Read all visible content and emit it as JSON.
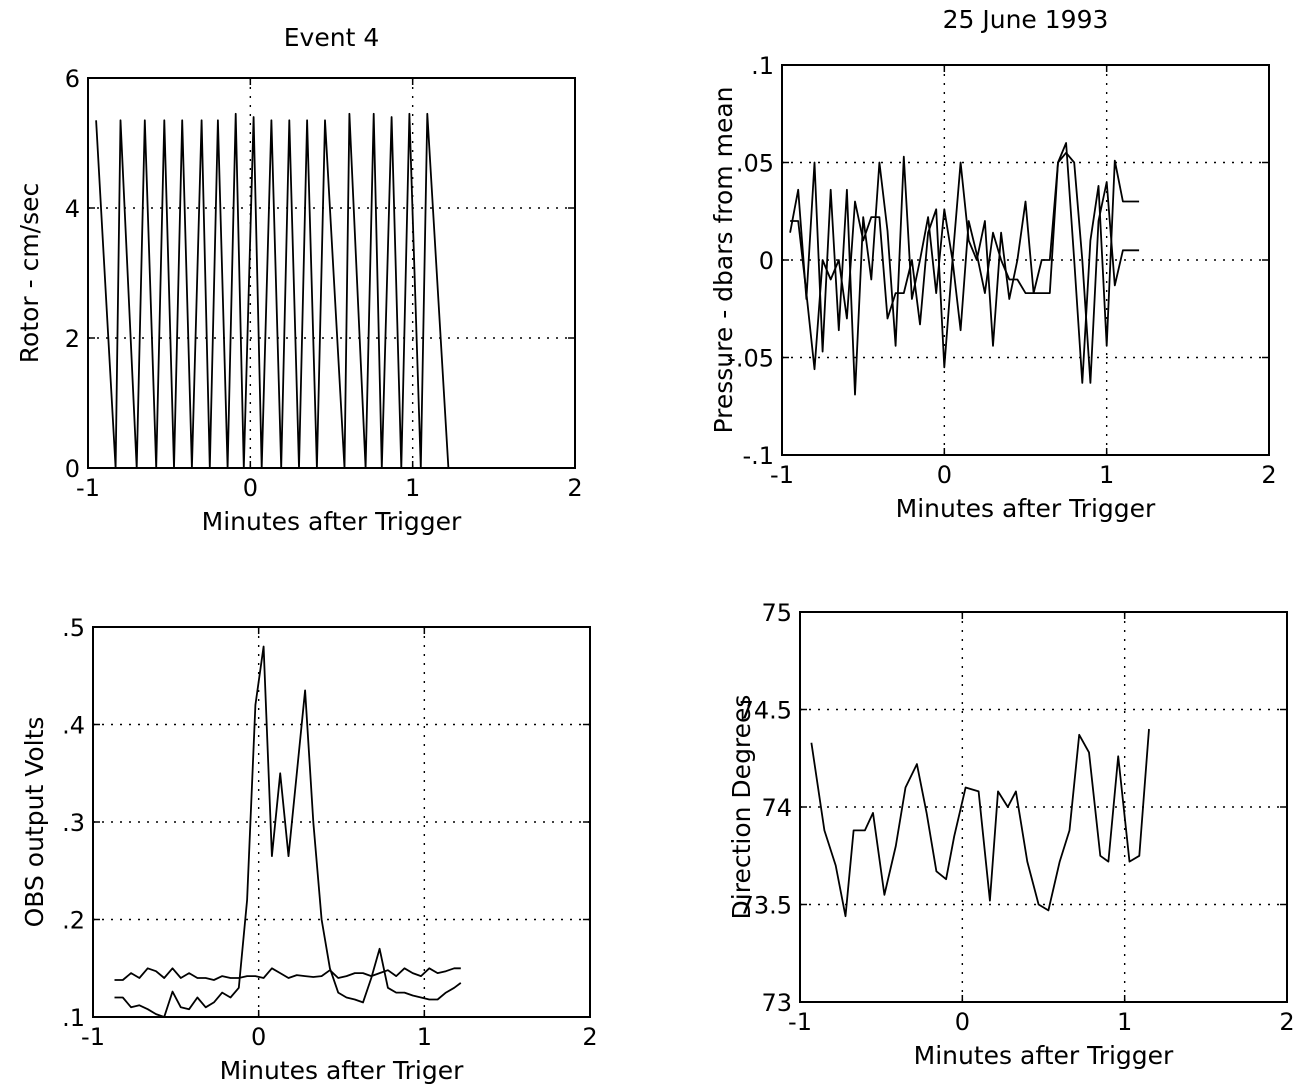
{
  "chart_data": [
    {
      "type": "line",
      "title": "Event 4",
      "xlabel": "Minutes after Trigger",
      "ylabel": "Rotor - cm/sec",
      "xlim": [
        -1,
        2
      ],
      "ylim": [
        0,
        6
      ],
      "xticks": [
        -1,
        0,
        1,
        2
      ],
      "yticks": [
        0,
        2,
        4,
        6
      ],
      "grid": true,
      "series": [
        {
          "x": [
            -0.95,
            -0.83,
            -0.8,
            -0.7,
            -0.65,
            -0.58,
            -0.53,
            -0.47,
            -0.42,
            -0.36,
            -0.3,
            -0.25,
            -0.2,
            -0.14,
            -0.09,
            -0.04,
            0.02,
            0.07,
            0.13,
            0.19,
            0.24,
            0.3,
            0.35,
            0.41,
            0.46,
            0.58,
            0.61,
            0.71,
            0.76,
            0.81,
            0.87,
            0.93,
            0.98,
            1.05,
            1.09,
            1.22
          ],
          "y": [
            5.35,
            0,
            5.35,
            0,
            5.35,
            0,
            5.35,
            0,
            5.35,
            0,
            5.35,
            0,
            5.35,
            0,
            5.45,
            0,
            5.4,
            0,
            5.35,
            0,
            5.35,
            0,
            5.35,
            0,
            5.35,
            0,
            5.45,
            0,
            5.45,
            0,
            5.4,
            0,
            5.45,
            0,
            5.45,
            0
          ]
        }
      ]
    },
    {
      "type": "line",
      "title": "25 June 1993",
      "xlabel": "Minutes after Trigger",
      "ylabel": "Pressure - dbars from mean",
      "xlim": [
        -1,
        2
      ],
      "ylim": [
        -0.1,
        0.1
      ],
      "xticks": [
        -1,
        0,
        1,
        2
      ],
      "yticks": [
        -0.1,
        -0.05,
        0,
        0.05,
        0.1
      ],
      "grid": true,
      "series": [
        {
          "x": [
            -0.95,
            -0.9,
            -0.85,
            -0.8,
            -0.75,
            -0.7,
            -0.65,
            -0.6,
            -0.55,
            -0.5,
            -0.45,
            -0.4,
            -0.35,
            -0.3,
            -0.25,
            -0.2,
            -0.15,
            -0.1,
            -0.05,
            0.0,
            0.05,
            0.1,
            0.15,
            0.2,
            0.25,
            0.3,
            0.35,
            0.4,
            0.45,
            0.5,
            0.55,
            0.6,
            0.65,
            0.7,
            0.75,
            0.8,
            0.85,
            0.9,
            0.95,
            1.0,
            1.05,
            1.1,
            1.15,
            1.2
          ],
          "y": [
            0.014,
            0.036,
            -0.02,
            0.05,
            -0.047,
            0.036,
            -0.036,
            0.036,
            -0.069,
            0.022,
            -0.01,
            0.05,
            0.015,
            -0.044,
            0.053,
            -0.02,
            0.0,
            0.022,
            -0.017,
            0.026,
            0.0,
            0.05,
            0.01,
            0.0,
            0.02,
            -0.044,
            0.014,
            -0.02,
            0.0,
            0.03,
            -0.017,
            0.0,
            0.0,
            0.05,
            0.06,
            0.0,
            -0.063,
            0.01,
            0.038,
            -0.044,
            0.051,
            0.03,
            0.03,
            0.03
          ]
        },
        {
          "x": [
            -0.95,
            -0.9,
            -0.85,
            -0.8,
            -0.75,
            -0.7,
            -0.65,
            -0.6,
            -0.55,
            -0.5,
            -0.45,
            -0.4,
            -0.35,
            -0.3,
            -0.25,
            -0.2,
            -0.15,
            -0.1,
            -0.05,
            0.0,
            0.05,
            0.1,
            0.15,
            0.2,
            0.25,
            0.3,
            0.35,
            0.4,
            0.45,
            0.5,
            0.55,
            0.6,
            0.65,
            0.7,
            0.75,
            0.8,
            0.85,
            0.9,
            0.95,
            1.0,
            1.05,
            1.1,
            1.15,
            1.2
          ],
          "y": [
            0.02,
            0.02,
            -0.017,
            -0.056,
            0.0,
            -0.01,
            0.0,
            -0.03,
            0.03,
            0.01,
            0.022,
            0.022,
            -0.03,
            -0.017,
            -0.017,
            0.0,
            -0.033,
            0.014,
            0.026,
            -0.055,
            0.0,
            -0.036,
            0.02,
            0.003,
            -0.017,
            0.014,
            0.0,
            -0.01,
            -0.01,
            -0.017,
            -0.017,
            -0.017,
            -0.017,
            0.05,
            0.055,
            0.05,
            0.0,
            -0.063,
            0.02,
            0.04,
            -0.013,
            0.005,
            0.005,
            0.005
          ]
        }
      ]
    },
    {
      "type": "line",
      "title": "",
      "xlabel": "Minutes after Triger",
      "ylabel": "OBS output Volts",
      "xlim": [
        -1,
        2
      ],
      "ylim": [
        0.1,
        0.5
      ],
      "xticks": [
        -1,
        0,
        1,
        2
      ],
      "yticks": [
        0.1,
        0.2,
        0.3,
        0.4,
        0.5
      ],
      "grid": true,
      "series": [
        {
          "x": [
            -0.87,
            -0.82,
            -0.77,
            -0.72,
            -0.67,
            -0.62,
            -0.57,
            -0.52,
            -0.47,
            -0.42,
            -0.37,
            -0.32,
            -0.27,
            -0.22,
            -0.17,
            -0.12,
            -0.07,
            -0.02,
            0.03,
            0.08,
            0.13,
            0.18,
            0.23,
            0.28,
            0.33,
            0.38,
            0.43,
            0.48,
            0.53,
            0.58,
            0.63,
            0.68,
            0.73,
            0.78,
            0.83,
            0.88,
            0.93,
            0.98,
            1.03,
            1.08,
            1.13,
            1.18,
            1.22
          ],
          "y": [
            0.138,
            0.138,
            0.145,
            0.14,
            0.15,
            0.147,
            0.14,
            0.15,
            0.14,
            0.145,
            0.14,
            0.14,
            0.138,
            0.142,
            0.14,
            0.14,
            0.142,
            0.142,
            0.14,
            0.15,
            0.145,
            0.14,
            0.143,
            0.142,
            0.141,
            0.142,
            0.148,
            0.14,
            0.142,
            0.145,
            0.145,
            0.142,
            0.145,
            0.148,
            0.142,
            0.15,
            0.145,
            0.142,
            0.15,
            0.145,
            0.147,
            0.15,
            0.15
          ]
        },
        {
          "x": [
            -0.87,
            -0.82,
            -0.77,
            -0.72,
            -0.67,
            -0.62,
            -0.57,
            -0.52,
            -0.47,
            -0.42,
            -0.37,
            -0.32,
            -0.27,
            -0.22,
            -0.17,
            -0.12,
            -0.07,
            -0.02,
            0.03,
            0.08,
            0.13,
            0.18,
            0.23,
            0.28,
            0.33,
            0.38,
            0.43,
            0.48,
            0.53,
            0.58,
            0.63,
            0.68,
            0.73,
            0.78,
            0.83,
            0.88,
            0.93,
            0.98,
            1.03,
            1.08,
            1.13,
            1.18,
            1.22
          ],
          "y": [
            0.12,
            0.12,
            0.11,
            0.112,
            0.108,
            0.103,
            0.1,
            0.126,
            0.11,
            0.108,
            0.12,
            0.11,
            0.115,
            0.125,
            0.12,
            0.13,
            0.22,
            0.42,
            0.48,
            0.265,
            0.35,
            0.265,
            0.35,
            0.435,
            0.3,
            0.2,
            0.15,
            0.125,
            0.12,
            0.118,
            0.115,
            0.14,
            0.17,
            0.13,
            0.125,
            0.125,
            0.122,
            0.12,
            0.118,
            0.118,
            0.125,
            0.13,
            0.135
          ]
        }
      ]
    },
    {
      "type": "line",
      "title": "",
      "xlabel": "Minutes after Trigger",
      "ylabel": "Direction Degrees",
      "xlim": [
        -1,
        2
      ],
      "ylim": [
        73,
        75
      ],
      "xticks": [
        -1,
        0,
        1,
        2
      ],
      "yticks": [
        73,
        73.5,
        74,
        74.5,
        75
      ],
      "grid": true,
      "series": [
        {
          "x": [
            -0.93,
            -0.85,
            -0.78,
            -0.72,
            -0.67,
            -0.6,
            -0.55,
            -0.48,
            -0.41,
            -0.35,
            -0.28,
            -0.22,
            -0.16,
            -0.1,
            -0.05,
            0.02,
            0.1,
            0.17,
            0.22,
            0.28,
            0.33,
            0.4,
            0.47,
            0.53,
            0.6,
            0.66,
            0.72,
            0.78,
            0.85,
            0.9,
            0.96,
            1.03,
            1.09,
            1.15
          ],
          "y": [
            74.33,
            73.88,
            73.7,
            73.44,
            73.88,
            73.88,
            73.97,
            73.55,
            73.8,
            74.1,
            74.22,
            73.97,
            73.67,
            73.63,
            73.85,
            74.1,
            74.08,
            73.52,
            74.08,
            74.0,
            74.08,
            73.72,
            73.5,
            73.47,
            73.72,
            73.88,
            74.37,
            74.28,
            73.75,
            73.72,
            74.26,
            73.72,
            73.75,
            74.4
          ]
        }
      ]
    }
  ]
}
